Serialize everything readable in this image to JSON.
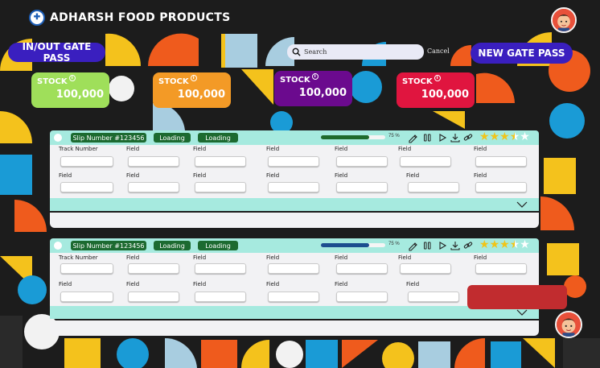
{
  "app": {
    "title": "ADHARSH FOOD PRODUCTS",
    "logo_icon": "hospital-cross-icon"
  },
  "nav": {
    "left_button": "IN/OUT GATE PASS",
    "right_button": "NEW GATE PASS"
  },
  "search": {
    "placeholder": "Search",
    "cancel": "Cancel"
  },
  "stock_cards": [
    {
      "label": "STOCK",
      "value": "100,000",
      "color": "#9fdf5a"
    },
    {
      "label": "STOCK",
      "value": "100,000",
      "color": "#f39a26"
    },
    {
      "label": "STOCK",
      "value": "100,000",
      "color": "#6b0a8e"
    },
    {
      "label": "STOCK",
      "value": "100,000",
      "color": "#e0153f"
    }
  ],
  "panels": [
    {
      "slip": "Slip Number #123456",
      "status1": "Loading",
      "status2": "Loading",
      "progress_percent": 75,
      "progress_label": "75 %",
      "progress_color": "#1e6a2b",
      "rating": 3.5,
      "row1_labels": [
        "Track Number",
        "Field",
        "Field",
        "Field",
        "Field",
        "Field",
        "Field"
      ],
      "row2_labels": [
        "Field",
        "Field",
        "Field",
        "Field",
        "Field",
        "Field",
        "Field"
      ]
    },
    {
      "slip": "Slip Number #123456",
      "status1": "Loading",
      "status2": "Loading",
      "progress_percent": 75,
      "progress_label": "75 %",
      "progress_color": "#1c4e8f",
      "rating": 3.5,
      "row1_labels": [
        "Track Number",
        "Field",
        "Field",
        "Field",
        "Field",
        "Field",
        "Field"
      ],
      "row2_labels": [
        "Field",
        "Field",
        "Field",
        "Field",
        "Field",
        "Field"
      ]
    }
  ],
  "toolbar_icons": [
    "pencil-icon",
    "pause-icon",
    "play-icon",
    "download-icon",
    "link-icon"
  ],
  "colors": {
    "accent": "#3a1fbf",
    "panel_bar": "#a6eadf",
    "status_tag": "#1c6a30",
    "alert": "#c12c2f"
  }
}
